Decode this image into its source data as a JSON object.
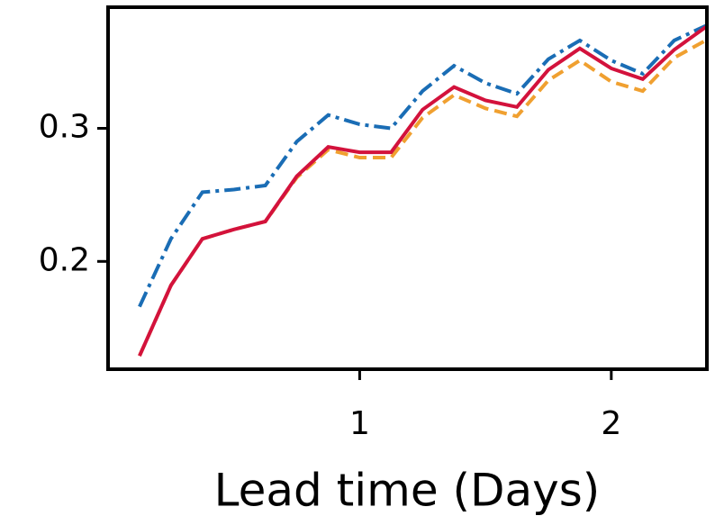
{
  "chart_data": {
    "type": "line",
    "x_label": "Lead time (Days)",
    "x": [
      0.125,
      0.25,
      0.375,
      0.5,
      0.625,
      0.75,
      0.875,
      1.0,
      1.125,
      1.25,
      1.375,
      1.5,
      1.625,
      1.75,
      1.875,
      2.0,
      2.125,
      2.25,
      2.375
    ],
    "series": [
      {
        "color": "#1a6db5",
        "dash": "dashdot",
        "values": [
          0.166,
          0.217,
          0.252,
          0.254,
          0.257,
          0.29,
          0.31,
          0.303,
          0.3,
          0.328,
          0.347,
          0.334,
          0.326,
          0.352,
          0.366,
          0.351,
          0.341,
          0.366,
          0.377
        ]
      },
      {
        "color": "#f0a030",
        "dash": "dashed",
        "values": [
          0.129,
          0.182,
          0.217,
          0.224,
          0.23,
          0.263,
          0.284,
          0.278,
          0.278,
          0.308,
          0.325,
          0.315,
          0.309,
          0.336,
          0.351,
          0.335,
          0.328,
          0.353,
          0.366
        ]
      },
      {
        "color": "#d3123c",
        "dash": "solid",
        "values": [
          0.129,
          0.182,
          0.217,
          0.224,
          0.23,
          0.264,
          0.286,
          0.282,
          0.282,
          0.314,
          0.331,
          0.321,
          0.316,
          0.344,
          0.36,
          0.345,
          0.337,
          0.359,
          0.376
        ]
      }
    ],
    "xlim": [
      0,
      2.38
    ],
    "xticks": [
      1,
      2
    ],
    "ylim": [
      0.119,
      0.391
    ],
    "yticks": [
      0.2,
      0.3
    ]
  }
}
